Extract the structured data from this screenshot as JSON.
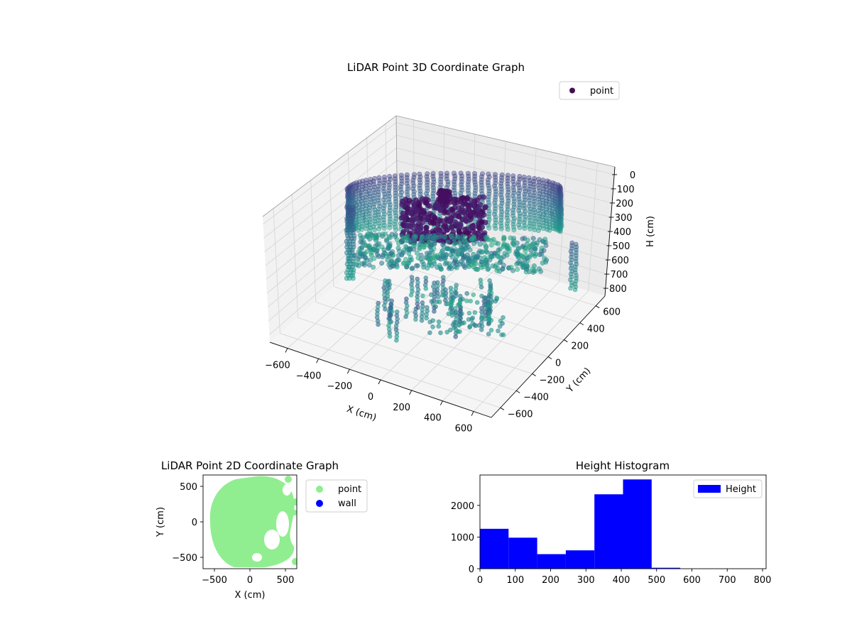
{
  "chart_data": [
    {
      "type": "scatter",
      "title": "LiDAR Point 3D Coordinate Graph",
      "xlabel": "X (cm)",
      "ylabel": "Y (cm)",
      "zlabel": "H (cm)",
      "xticks": [
        "−600",
        "−400",
        "−200",
        "0",
        "200",
        "400",
        "600"
      ],
      "yticks": [
        "−600",
        "−400",
        "−200",
        "0",
        "200",
        "400",
        "600"
      ],
      "zticks": [
        "0",
        "100",
        "200",
        "300",
        "400",
        "500",
        "600",
        "700",
        "800"
      ],
      "xlim": [
        -650,
        650
      ],
      "ylim": [
        -650,
        650
      ],
      "zlim": [
        0,
        800
      ],
      "zaxis_inverted": true,
      "colormap": "viridis",
      "grid": true,
      "legend": {
        "position": "top-right",
        "entries": [
          {
            "label": "point",
            "color": "#440f54"
          }
        ]
      }
    },
    {
      "type": "scatter",
      "title": "LiDAR Point 2D Coordinate Graph",
      "xlabel": "X (cm)",
      "ylabel": "Y (cm)",
      "xticks": [
        "−500",
        "0",
        "500"
      ],
      "yticks": [
        "500",
        "0",
        "−500"
      ],
      "xlim": [
        -660,
        660
      ],
      "ylim": [
        -660,
        660
      ],
      "legend": {
        "position": "outside-right",
        "entries": [
          {
            "label": "point",
            "color": "#90ee90"
          },
          {
            "label": "wall",
            "color": "#0000ff"
          }
        ]
      }
    },
    {
      "type": "bar",
      "subtype": "histogram",
      "title": "Height Histogram",
      "xticks": [
        "0",
        "100",
        "200",
        "300",
        "400",
        "500",
        "600",
        "700",
        "800"
      ],
      "yticks": [
        "0",
        "1000",
        "2000"
      ],
      "bin_edges": [
        0,
        81,
        162,
        243,
        324,
        405,
        486,
        567,
        648,
        729,
        810
      ],
      "values": [
        1260,
        980,
        460,
        580,
        2350,
        2820,
        30,
        0,
        0,
        0
      ],
      "xlim": [
        0,
        810
      ],
      "ylim": [
        0,
        2960
      ],
      "color": "#0000ff",
      "legend": {
        "position": "top-right",
        "entries": [
          {
            "label": "Height",
            "color": "#0000ff"
          }
        ]
      }
    }
  ]
}
